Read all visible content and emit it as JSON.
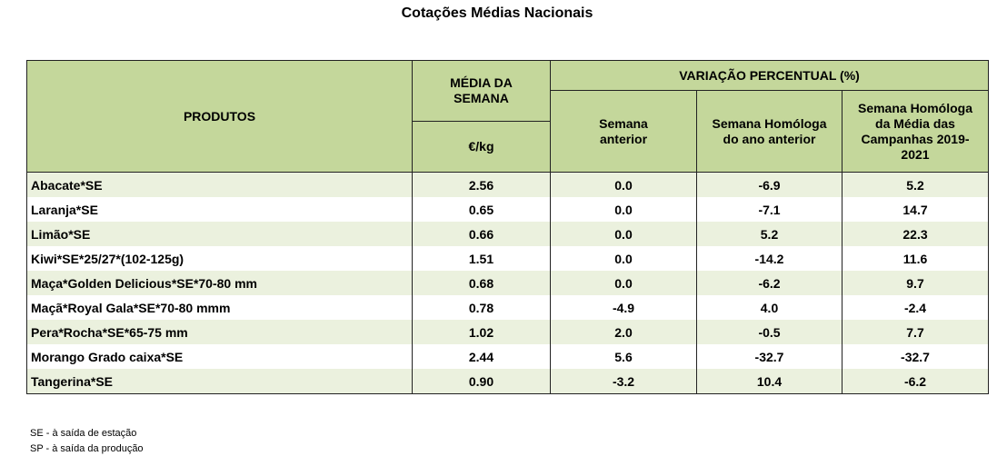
{
  "title": "Cotações Médias Nacionais",
  "headers": {
    "produtos": "PRODUTOS",
    "media": "MÉDIA DA SEMANA",
    "unit": "€/kg",
    "variacao": "VARIAÇÃO PERCENTUAL (%)",
    "semana_anterior": "Semana anterior",
    "homologa_ano": "Semana Homóloga do ano anterior",
    "homologa_campanhas": "Semana Homóloga da Média das Campanhas 2019-2021"
  },
  "rows": [
    {
      "product": "Abacate*SE",
      "price": "2.56",
      "prev_week": "0.0",
      "prev_year": "-6.9",
      "campaigns": "5.2"
    },
    {
      "product": "Laranja*SE",
      "price": "0.65",
      "prev_week": "0.0",
      "prev_year": "-7.1",
      "campaigns": "14.7"
    },
    {
      "product": "Limão*SE",
      "price": "0.66",
      "prev_week": "0.0",
      "prev_year": "5.2",
      "campaigns": "22.3"
    },
    {
      "product": "Kiwi*SE*25/27*(102-125g)",
      "price": "1.51",
      "prev_week": "0.0",
      "prev_year": "-14.2",
      "campaigns": "11.6"
    },
    {
      "product": "Maça*Golden Delicious*SE*70-80 mm",
      "price": "0.68",
      "prev_week": "0.0",
      "prev_year": "-6.2",
      "campaigns": "9.7"
    },
    {
      "product": "Maçã*Royal Gala*SE*70-80 mmm",
      "price": "0.78",
      "prev_week": "-4.9",
      "prev_year": "4.0",
      "campaigns": "-2.4"
    },
    {
      "product": "Pera*Rocha*SE*65-75 mm",
      "price": "1.02",
      "prev_week": "2.0",
      "prev_year": "-0.5",
      "campaigns": "7.7"
    },
    {
      "product": "Morango Grado caixa*SE",
      "price": "2.44",
      "prev_week": "5.6",
      "prev_year": "-32.7",
      "campaigns": "-32.7"
    },
    {
      "product": "Tangerina*SE",
      "price": "0.90",
      "prev_week": "-3.2",
      "prev_year": "10.4",
      "campaigns": "-6.2"
    }
  ],
  "notes": [
    "SE - à saída de estação",
    "SP - à saída da produção"
  ]
}
